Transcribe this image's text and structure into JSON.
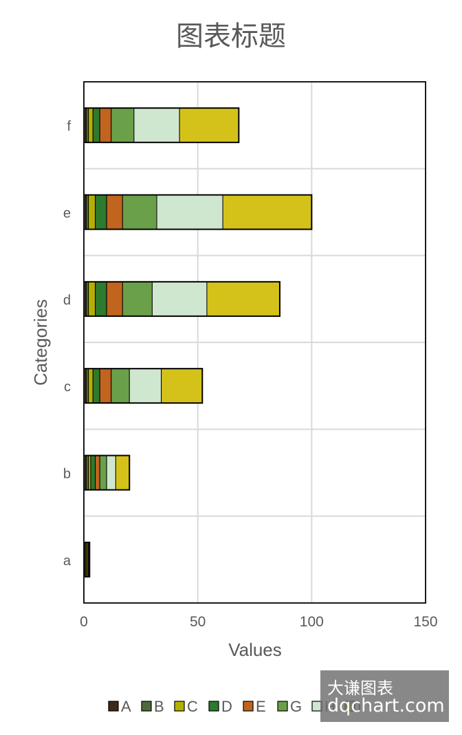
{
  "chart_data": {
    "type": "bar",
    "orientation": "horizontal",
    "stacked": true,
    "title": "图表标题",
    "xlabel": "Values",
    "ylabel": "Categories",
    "categories": [
      "a",
      "b",
      "c",
      "d",
      "e",
      "f"
    ],
    "xlim": [
      0,
      150
    ],
    "xticks": [
      0,
      50,
      100,
      150
    ],
    "grid": true,
    "legend_position": "bottom",
    "series": [
      {
        "name": "A",
        "values": [
          0.5,
          1,
          1,
          1,
          1,
          1
        ],
        "color": "#3d2a1a"
      },
      {
        "name": "B",
        "values": [
          0.5,
          1,
          1,
          1,
          1,
          1
        ],
        "color": "#4f6a3a"
      },
      {
        "name": "C",
        "values": [
          0.5,
          1,
          2,
          3,
          3,
          2
        ],
        "color": "#b5b000"
      },
      {
        "name": "D",
        "values": [
          0.5,
          2,
          3,
          5,
          5,
          3
        ],
        "color": "#2e7a2e"
      },
      {
        "name": "E",
        "values": [
          0.5,
          2,
          5,
          7,
          7,
          5
        ],
        "color": "#c0641e"
      },
      {
        "name": "G",
        "values": [
          0,
          3,
          8,
          13,
          15,
          10
        ],
        "color": "#6aa04a"
      },
      {
        "name": "H",
        "values": [
          0,
          4,
          14,
          24,
          29,
          20
        ],
        "color": "#cfe6cf"
      },
      {
        "name": "I",
        "values": [
          0,
          6,
          18,
          32,
          39,
          26
        ],
        "color": "#d4c21a"
      }
    ]
  },
  "legend_labels": [
    "A",
    "B",
    "C",
    "D",
    "E",
    "G",
    "H",
    "I"
  ],
  "watermark": {
    "line1": "大谦图表",
    "line2": "dqchart.com"
  }
}
